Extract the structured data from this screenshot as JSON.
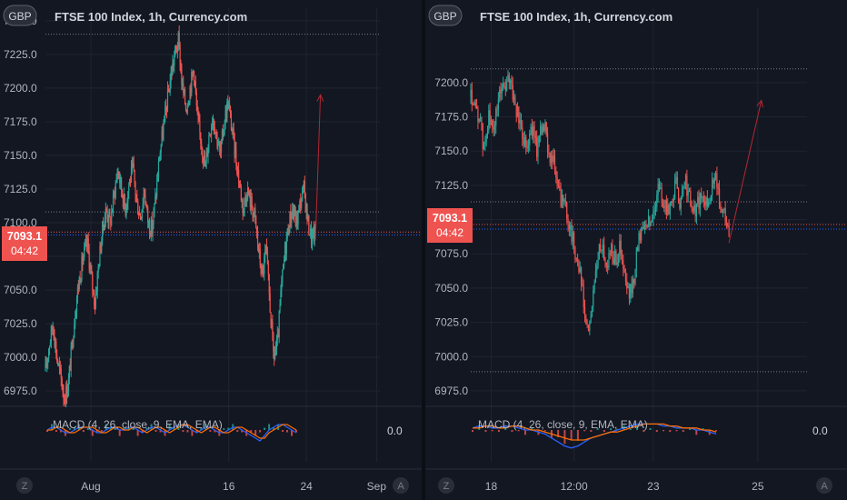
{
  "colors": {
    "background": "#131722",
    "grid": "#1f2430",
    "up": "#26a69a",
    "down": "#ef5350",
    "price_line": "#ef5350",
    "reference_line": "#787b86",
    "arrow": "#b22833",
    "macd_line": "#2962ff",
    "signal_line": "#ff6d00"
  },
  "chart_data": [
    {
      "type": "candlestick",
      "title": "FTSE 100 Index, 1h, Currency.com",
      "currency": "GBP",
      "ylim": [
        6965,
        7260
      ],
      "yticks": [
        6975.0,
        7000.0,
        7025.0,
        7050.0,
        7075.0,
        7100.0,
        7125.0,
        7150.0,
        7175.0,
        7200.0,
        7225.0,
        7250.0
      ],
      "xticks": [
        "Aug",
        "16",
        "24",
        "Sep"
      ],
      "xtick_index": [
        55,
        222,
        316,
        401
      ],
      "axis_buttons": [
        "Z",
        "A"
      ],
      "last_price": "7093.1",
      "countdown": "04:42",
      "reference_levels": [
        7240.0,
        7108.0
      ],
      "price_line": 7093.1,
      "blue_line": 7091.0,
      "arrow": {
        "from_index": 327,
        "from_value": 7087,
        "to_index": 333,
        "to_value": 7195
      },
      "visible_bars": 405,
      "candles_close": [
        6990,
        7010,
        7025,
        7000,
        6985,
        6970,
        6980,
        7010,
        7040,
        7060,
        7075,
        7085,
        7060,
        7040,
        7070,
        7095,
        7110,
        7100,
        7120,
        7140,
        7125,
        7110,
        7130,
        7140,
        7115,
        7105,
        7125,
        7100,
        7095,
        7120,
        7150,
        7170,
        7190,
        7210,
        7225,
        7235,
        7200,
        7185,
        7200,
        7215,
        7175,
        7160,
        7140,
        7165,
        7180,
        7165,
        7150,
        7175,
        7190,
        7170,
        7150,
        7130,
        7110,
        7125,
        7115,
        7105,
        7080,
        7060,
        7080,
        7040,
        7000,
        7010,
        7050,
        7080,
        7100,
        7110,
        7100,
        7115,
        7125,
        7100,
        7088,
        7093
      ],
      "indicator": {
        "label": "MACD (4, 26, close, 9, EMA, EMA)",
        "value_label": "0.0",
        "macd": [
          0,
          1,
          1,
          0,
          -1,
          -1,
          0,
          1,
          1,
          1,
          0,
          -1,
          -1,
          0,
          1,
          1,
          0,
          0,
          1,
          1,
          0,
          -1,
          0,
          1,
          1,
          0,
          -1,
          0,
          1,
          2,
          2,
          1,
          0,
          -1,
          0,
          1,
          1,
          0,
          -1,
          -1,
          0,
          1,
          1,
          0,
          -1,
          -2,
          -3,
          -4,
          -2,
          0,
          1,
          2,
          2,
          1,
          0,
          -1
        ],
        "signal": [
          0,
          0,
          1,
          1,
          0,
          -1,
          -1,
          0,
          1,
          1,
          1,
          0,
          -1,
          -1,
          0,
          1,
          1,
          0,
          0,
          1,
          1,
          0,
          -1,
          0,
          1,
          1,
          0,
          -1,
          0,
          1,
          2,
          2,
          1,
          0,
          -1,
          0,
          1,
          1,
          0,
          -1,
          -1,
          0,
          1,
          1,
          0,
          -1,
          -2,
          -3,
          -3,
          -1,
          0,
          1,
          2,
          2,
          1,
          0
        ],
        "zero_line": 0.0
      }
    },
    {
      "type": "candlestick",
      "title": "FTSE 100 Index, 1h, Currency.com",
      "currency": "GBP",
      "ylim": [
        6965,
        7255
      ],
      "yticks": [
        6975.0,
        7000.0,
        7025.0,
        7050.0,
        7075.0,
        7100.0,
        7125.0,
        7150.0,
        7175.0,
        7200.0
      ],
      "xticks": [
        "18",
        "12:00",
        "23",
        "25"
      ],
      "xtick_index": [
        17,
        86,
        152,
        239
      ],
      "axis_buttons": [
        "Z",
        "A"
      ],
      "last_price": "7093.1",
      "countdown": "04:42",
      "reference_levels": [
        7210.0,
        7113.0,
        6989.0
      ],
      "price_line": 7096.5,
      "blue_line": 7093.1,
      "arrow": {
        "from_index": 215,
        "from_value": 7083,
        "to_index": 242,
        "to_value": 7187
      },
      "visible_bars": 280,
      "candles_close": [
        7190,
        7178,
        7175,
        7150,
        7175,
        7165,
        7180,
        7200,
        7195,
        7205,
        7185,
        7172,
        7162,
        7155,
        7168,
        7150,
        7170,
        7165,
        7148,
        7140,
        7120,
        7112,
        7105,
        7090,
        7075,
        7060,
        7030,
        7015,
        7050,
        7070,
        7085,
        7065,
        7080,
        7070,
        7080,
        7060,
        7045,
        7050,
        7080,
        7095,
        7100,
        7095,
        7110,
        7125,
        7110,
        7105,
        7118,
        7125,
        7110,
        7130,
        7115,
        7105,
        7112,
        7115,
        7110,
        7125,
        7128,
        7115,
        7105,
        7092
      ],
      "indicator": {
        "label": "MACD (4, 26, close, 9, EMA, EMA)",
        "value_label": "0.0",
        "macd": [
          1,
          2,
          2,
          1,
          1,
          2,
          2,
          1,
          0,
          0,
          -1,
          -2,
          -4,
          -6,
          -8,
          -9,
          -8,
          -6,
          -4,
          -3,
          -2,
          -1,
          0,
          1,
          2,
          3,
          3,
          3,
          3,
          2,
          2,
          1,
          1,
          1,
          0,
          0,
          -1,
          -2
        ],
        "signal": [
          1,
          1,
          2,
          2,
          1,
          1,
          2,
          2,
          1,
          0,
          0,
          -1,
          -2,
          -3,
          -4,
          -5,
          -5,
          -5,
          -4,
          -3,
          -2,
          -1,
          -1,
          0,
          1,
          2,
          3,
          3,
          3,
          3,
          2,
          2,
          1,
          1,
          1,
          0,
          0,
          -1
        ],
        "zero_line": 0.0
      }
    }
  ]
}
